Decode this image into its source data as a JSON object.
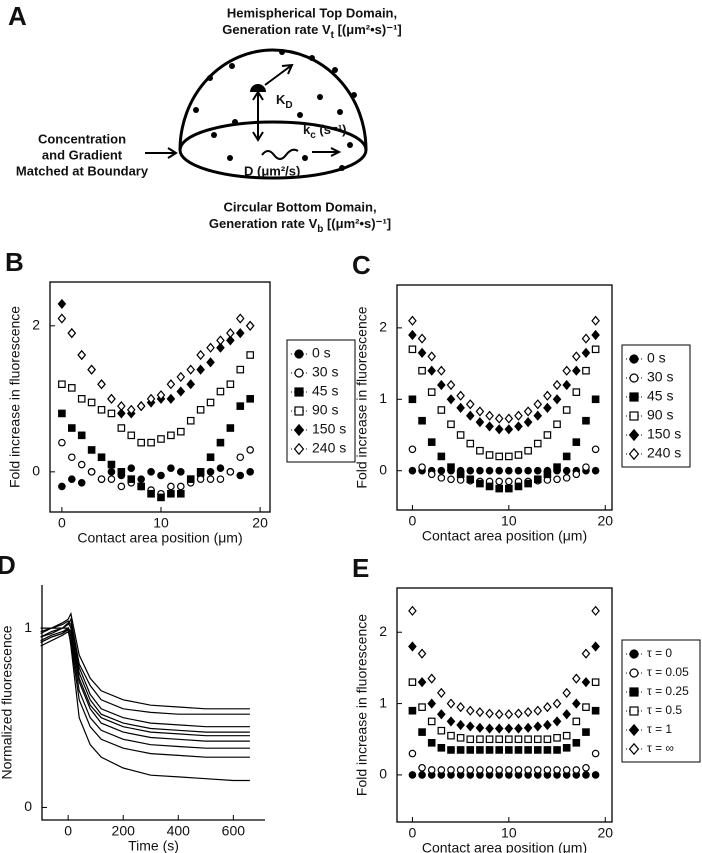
{
  "panel_a": {
    "label": "A",
    "top_title": [
      "Hemispherical Top Domain,",
      [
        "Generation rate V",
        "t",
        " [(μm²•s)⁻¹]"
      ]
    ],
    "bottom_title": [
      "Circular Bottom Domain,",
      [
        "Generation rate V",
        "b",
        " [(μm²•s)⁻¹]"
      ]
    ],
    "boundary": [
      "Concentration",
      "and Gradient",
      "Matched at Boundary"
    ],
    "kd": [
      "K",
      "D"
    ],
    "kc": [
      "k",
      "c",
      " (s⁻¹)"
    ],
    "diffusion": "D (μm²/s)"
  },
  "chart_data": [
    {
      "type": "scatter",
      "panel_label": "B",
      "xlabel": "Contact area position (μm)",
      "ylabel": "Fold increase in fluorescence",
      "x": [
        0,
        1,
        2,
        3,
        4,
        5,
        6,
        7,
        8,
        9,
        10,
        11,
        12,
        13,
        14,
        15,
        16,
        17,
        18,
        19
      ],
      "xlim": [
        -1.2,
        21
      ],
      "ylim": [
        -0.55,
        2.6
      ],
      "xticks": [
        0,
        10,
        20
      ],
      "yticks": [
        0,
        2
      ],
      "series": [
        {
          "name": "0 s",
          "marker": "circle",
          "filled": true,
          "color": "#000",
          "values": [
            -0.2,
            -0.1,
            -0.15,
            0.0,
            -0.1,
            0.0,
            -0.05,
            0.05,
            -0.1,
            0.0,
            -0.05,
            0.05,
            0.0,
            -0.1,
            -0.05,
            0.0,
            0.05,
            0.0,
            -0.05,
            0.0
          ]
        },
        {
          "name": "30 s",
          "marker": "circle",
          "filled": false,
          "color": "#000",
          "values": [
            0.4,
            0.2,
            0.1,
            0.0,
            -0.1,
            -0.1,
            -0.2,
            -0.15,
            -0.2,
            -0.25,
            -0.3,
            -0.2,
            -0.2,
            -0.15,
            -0.1,
            -0.1,
            -0.1,
            0.0,
            0.2,
            0.3
          ]
        },
        {
          "name": "45 s",
          "marker": "square",
          "filled": true,
          "color": "#000",
          "values": [
            0.8,
            0.6,
            0.5,
            0.3,
            0.2,
            0.1,
            0.0,
            -0.1,
            -0.2,
            -0.3,
            -0.35,
            -0.3,
            -0.3,
            -0.1,
            0.0,
            0.2,
            0.4,
            0.6,
            0.9,
            1.0
          ]
        },
        {
          "name": "90 s",
          "marker": "square",
          "filled": false,
          "color": "#000",
          "values": [
            1.2,
            1.15,
            1.0,
            0.95,
            0.85,
            0.8,
            0.6,
            0.5,
            0.4,
            0.4,
            0.45,
            0.5,
            0.55,
            0.7,
            0.85,
            0.95,
            1.1,
            1.2,
            1.4,
            1.6
          ]
        },
        {
          "name": "150 s",
          "marker": "diamond",
          "filled": true,
          "color": "#000",
          "values": [
            2.3,
            1.9,
            1.6,
            1.4,
            1.2,
            1.0,
            0.8,
            0.8,
            0.9,
            0.95,
            1.0,
            1.0,
            1.1,
            1.2,
            1.4,
            1.5,
            1.7,
            1.8,
            1.9,
            2.0
          ]
        },
        {
          "name": "240 s",
          "marker": "diamond",
          "filled": false,
          "color": "#000",
          "values": [
            2.1,
            1.9,
            1.6,
            1.4,
            1.2,
            1.0,
            0.9,
            0.85,
            0.9,
            1.0,
            1.05,
            1.2,
            1.3,
            1.4,
            1.6,
            1.7,
            1.8,
            1.9,
            2.1,
            2.0
          ]
        }
      ]
    },
    {
      "type": "scatter",
      "panel_label": "C",
      "xlabel": "Contact area position (μm)",
      "ylabel": "Fold increase in fluorescence",
      "x": [
        0,
        1,
        2,
        3,
        4,
        5,
        6,
        7,
        8,
        9,
        10,
        11,
        12,
        13,
        14,
        15,
        16,
        17,
        18,
        19
      ],
      "xlim": [
        -1.6,
        20.7
      ],
      "ylim": [
        -0.55,
        2.6
      ],
      "xticks": [
        0,
        10,
        20
      ],
      "yticks": [
        0,
        1,
        2
      ],
      "series": [
        {
          "name": "0 s",
          "marker": "circle",
          "filled": true,
          "color": "#000",
          "values": [
            0,
            0,
            0,
            0,
            0,
            0,
            0,
            0,
            0,
            0,
            0,
            0,
            0,
            0,
            0,
            0,
            0,
            0,
            0,
            0
          ]
        },
        {
          "name": "30 s",
          "marker": "circle",
          "filled": false,
          "color": "#000",
          "values": [
            0.3,
            0.05,
            -0.05,
            -0.1,
            -0.12,
            -0.13,
            -0.14,
            -0.15,
            -0.15,
            -0.15,
            -0.15,
            -0.15,
            -0.15,
            -0.14,
            -0.13,
            -0.12,
            -0.1,
            -0.05,
            0.05,
            0.3
          ]
        },
        {
          "name": "45 s",
          "marker": "square",
          "filled": true,
          "color": "#000",
          "values": [
            1.0,
            0.7,
            0.4,
            0.2,
            0.05,
            -0.05,
            -0.12,
            -0.18,
            -0.22,
            -0.25,
            -0.25,
            -0.22,
            -0.18,
            -0.12,
            -0.05,
            0.05,
            0.2,
            0.4,
            0.7,
            1.0
          ]
        },
        {
          "name": "90 s",
          "marker": "square",
          "filled": false,
          "color": "#000",
          "values": [
            1.7,
            1.4,
            1.1,
            0.85,
            0.65,
            0.5,
            0.38,
            0.28,
            0.22,
            0.2,
            0.2,
            0.22,
            0.28,
            0.38,
            0.5,
            0.65,
            0.85,
            1.1,
            1.4,
            1.7
          ]
        },
        {
          "name": "150 s",
          "marker": "diamond",
          "filled": true,
          "color": "#000",
          "values": [
            1.9,
            1.65,
            1.4,
            1.2,
            1.0,
            0.88,
            0.77,
            0.68,
            0.62,
            0.58,
            0.58,
            0.62,
            0.68,
            0.77,
            0.88,
            1.0,
            1.2,
            1.4,
            1.65,
            1.9
          ]
        },
        {
          "name": "240 s",
          "marker": "diamond",
          "filled": false,
          "color": "#000",
          "values": [
            2.1,
            1.85,
            1.6,
            1.4,
            1.2,
            1.05,
            0.93,
            0.83,
            0.77,
            0.73,
            0.73,
            0.77,
            0.83,
            0.93,
            1.05,
            1.2,
            1.4,
            1.6,
            1.85,
            2.1
          ]
        }
      ]
    },
    {
      "type": "line",
      "panel_label": "D",
      "xlabel": "Time (s)",
      "ylabel": "Normalized fluorescence",
      "x": [
        -100,
        -60,
        -20,
        0,
        10,
        40,
        80,
        120,
        200,
        300,
        400,
        500,
        600,
        660
      ],
      "xlim": [
        -95,
        715
      ],
      "ylim": [
        -0.07,
        1.24
      ],
      "xticks": [
        0,
        200,
        400,
        600
      ],
      "yticks": [
        0,
        1
      ],
      "series": [
        {
          "color": "#000",
          "values": [
            0.98,
            1.0,
            1.03,
            1.05,
            1.08,
            0.85,
            0.72,
            0.65,
            0.6,
            0.57,
            0.56,
            0.55,
            0.55,
            0.55
          ]
        },
        {
          "color": "#000",
          "values": [
            0.95,
            0.98,
            1.0,
            1.02,
            1.05,
            0.8,
            0.68,
            0.6,
            0.55,
            0.53,
            0.52,
            0.52,
            0.52,
            0.52
          ]
        },
        {
          "color": "#000",
          "values": [
            1.0,
            1.0,
            1.02,
            1.04,
            1.02,
            0.78,
            0.63,
            0.55,
            0.5,
            0.47,
            0.46,
            0.45,
            0.45,
            0.45
          ]
        },
        {
          "color": "#000",
          "values": [
            0.97,
            1.0,
            1.0,
            1.03,
            1.0,
            0.75,
            0.6,
            0.52,
            0.47,
            0.44,
            0.43,
            0.42,
            0.42,
            0.42
          ]
        },
        {
          "color": "#000",
          "values": [
            0.95,
            0.97,
            1.0,
            1.0,
            0.98,
            0.72,
            0.57,
            0.5,
            0.45,
            0.42,
            0.41,
            0.4,
            0.4,
            0.4
          ]
        },
        {
          "color": "#000",
          "values": [
            0.93,
            0.96,
            0.98,
            1.0,
            0.97,
            0.7,
            0.55,
            0.47,
            0.42,
            0.39,
            0.38,
            0.37,
            0.37,
            0.37
          ]
        },
        {
          "color": "#000",
          "values": [
            0.92,
            0.95,
            0.97,
            0.99,
            0.95,
            0.65,
            0.5,
            0.43,
            0.38,
            0.35,
            0.34,
            0.33,
            0.33,
            0.33
          ]
        },
        {
          "color": "#000",
          "values": [
            0.9,
            0.93,
            0.96,
            0.98,
            0.92,
            0.6,
            0.45,
            0.38,
            0.33,
            0.3,
            0.29,
            0.28,
            0.28,
            0.28
          ]
        },
        {
          "color": "#000",
          "values": [
            0.92,
            0.95,
            0.97,
            1.0,
            0.9,
            0.5,
            0.35,
            0.28,
            0.22,
            0.18,
            0.17,
            0.16,
            0.15,
            0.15
          ]
        }
      ]
    },
    {
      "type": "scatter",
      "panel_label": "E",
      "xlabel": "Contact area position (μm)",
      "ylabel": "Fold increase in fluorescence",
      "x": [
        0,
        1,
        2,
        3,
        4,
        5,
        6,
        7,
        8,
        9,
        10,
        11,
        12,
        13,
        14,
        15,
        16,
        17,
        18,
        19
      ],
      "xlim": [
        -1.6,
        20.7
      ],
      "ylim": [
        -0.66,
        2.62
      ],
      "xticks": [
        0,
        10,
        20
      ],
      "yticks": [
        0,
        1,
        2
      ],
      "series": [
        {
          "name": "τ = 0",
          "marker": "circle",
          "filled": true,
          "color": "#000",
          "values": [
            0,
            0,
            0,
            0,
            0,
            0,
            0,
            0,
            0,
            0,
            0,
            0,
            0,
            0,
            0,
            0,
            0,
            0,
            0,
            0
          ]
        },
        {
          "name": "τ = 0.05",
          "marker": "circle",
          "filled": false,
          "color": "#000",
          "values": [
            0.3,
            0.1,
            0.07,
            0.07,
            0.07,
            0.07,
            0.07,
            0.07,
            0.07,
            0.07,
            0.07,
            0.07,
            0.07,
            0.07,
            0.07,
            0.07,
            0.07,
            0.07,
            0.1,
            0.3
          ]
        },
        {
          "name": "τ = 0.25",
          "marker": "square",
          "filled": true,
          "color": "#000",
          "values": [
            0.9,
            0.6,
            0.45,
            0.38,
            0.35,
            0.35,
            0.35,
            0.35,
            0.35,
            0.35,
            0.35,
            0.35,
            0.35,
            0.35,
            0.35,
            0.35,
            0.38,
            0.45,
            0.6,
            0.9
          ]
        },
        {
          "name": "τ = 0.5",
          "marker": "square",
          "filled": false,
          "color": "#000",
          "values": [
            1.3,
            0.95,
            0.75,
            0.62,
            0.55,
            0.52,
            0.5,
            0.5,
            0.5,
            0.5,
            0.5,
            0.5,
            0.5,
            0.5,
            0.5,
            0.52,
            0.55,
            0.75,
            0.95,
            1.3
          ]
        },
        {
          "name": "τ = 1",
          "marker": "diamond",
          "filled": true,
          "color": "#000",
          "values": [
            1.8,
            1.3,
            1.0,
            0.85,
            0.75,
            0.7,
            0.68,
            0.66,
            0.65,
            0.65,
            0.65,
            0.65,
            0.66,
            0.68,
            0.7,
            0.75,
            0.85,
            1.0,
            1.3,
            1.8
          ]
        },
        {
          "name": "τ = ∞",
          "marker": "diamond",
          "filled": false,
          "color": "#000",
          "values": [
            2.3,
            1.7,
            1.35,
            1.15,
            1.0,
            0.95,
            0.9,
            0.88,
            0.86,
            0.85,
            0.85,
            0.86,
            0.88,
            0.9,
            0.95,
            1.0,
            1.15,
            1.35,
            1.7,
            2.3
          ]
        }
      ]
    }
  ]
}
